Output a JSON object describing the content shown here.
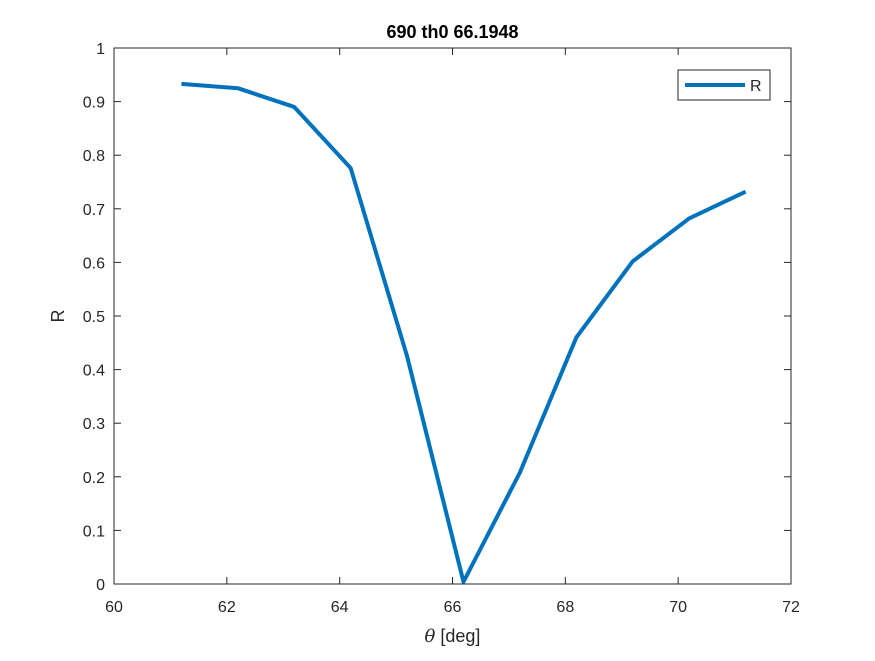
{
  "chart_data": {
    "type": "line",
    "title": "690 th0 66.1948",
    "xlabel_symbol": "θ",
    "xlabel_rest": " [deg]",
    "ylabel": "R",
    "xlim": [
      60,
      72
    ],
    "ylim": [
      0,
      1
    ],
    "xticks": [
      60,
      62,
      64,
      66,
      68,
      70,
      72
    ],
    "yticks": [
      0,
      0.1,
      0.2,
      0.3,
      0.4,
      0.5,
      0.6,
      0.7,
      0.8,
      0.9,
      1
    ],
    "grid": false,
    "legend_position": "top-right",
    "series": [
      {
        "name": "R",
        "color": "#0072BD",
        "x": [
          61.1948,
          62.1948,
          63.1948,
          64.1948,
          65.1948,
          66.1948,
          67.1948,
          68.1948,
          69.1948,
          70.1948,
          71.1948
        ],
        "y": [
          0.933,
          0.925,
          0.89,
          0.776,
          0.425,
          0.004,
          0.208,
          0.46,
          0.602,
          0.682,
          0.732
        ]
      }
    ]
  }
}
